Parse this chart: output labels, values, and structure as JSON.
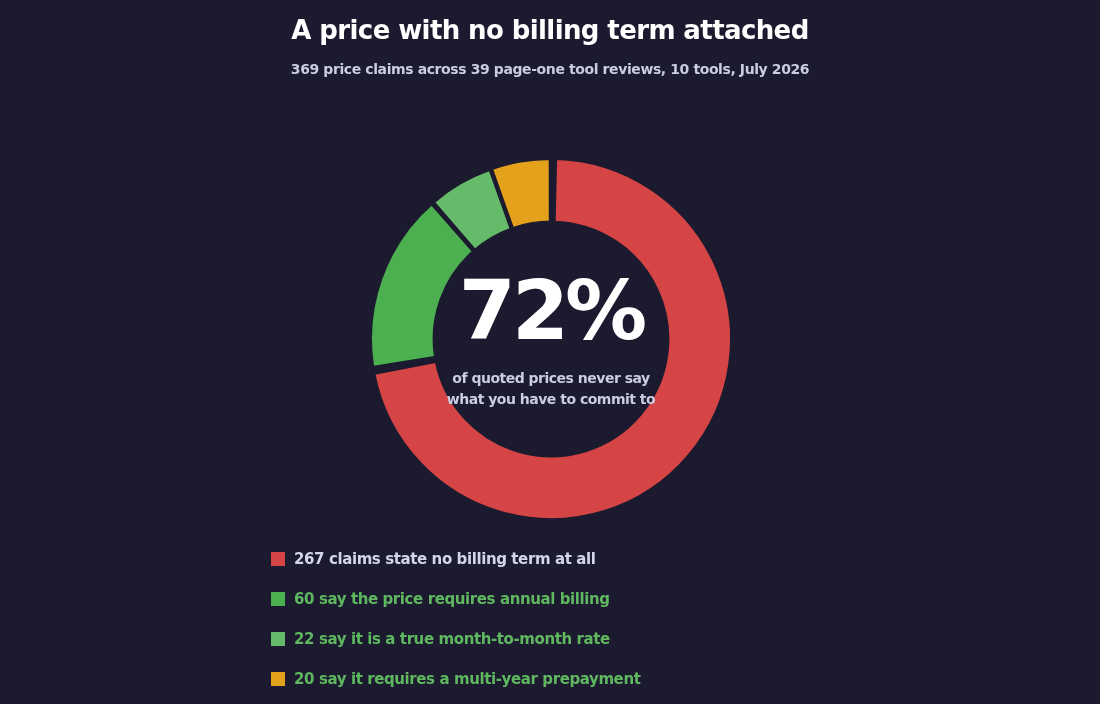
{
  "chart_data": {
    "type": "donut",
    "title": "A price with no billing term attached",
    "subtitle": "369 price claims across 39 page-one tool reviews, 10 tools, July 2026",
    "categories": [
      "267 claims state no billing term at all",
      "60 say the price requires annual billing",
      "22 say it is a true month-to-month rate",
      "20 say it requires a multi-year prepayment"
    ],
    "values": [
      267,
      60,
      22,
      20
    ],
    "colors": [
      "#d64545",
      "#4caf50",
      "#66bb6a",
      "#e4a11b"
    ],
    "annotations": [
      "72%",
      "of quoted prices never say what you have to commit to"
    ],
    "legend": "bottom left"
  }
}
